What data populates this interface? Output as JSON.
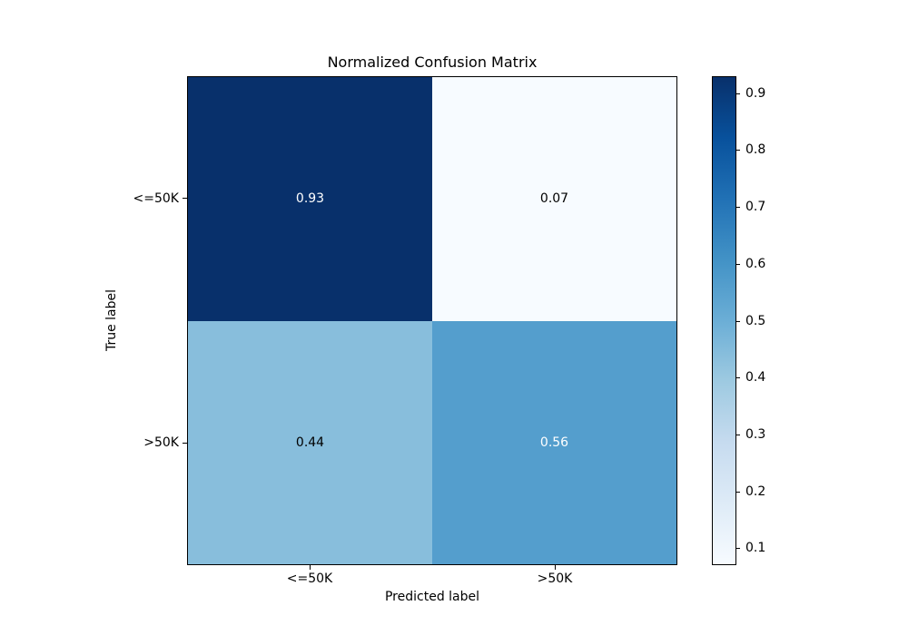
{
  "chart_data": {
    "type": "heatmap",
    "title": "Normalized Confusion Matrix",
    "xlabel": "Predicted label",
    "ylabel": "True label",
    "classes": [
      "<=50K",
      ">50K"
    ],
    "matrix": [
      [
        0.93,
        0.07
      ],
      [
        0.44,
        0.56
      ]
    ],
    "cell_labels": [
      [
        "0.93",
        "0.07"
      ],
      [
        "0.44",
        "0.56"
      ]
    ],
    "cell_colors": [
      [
        "#08306b",
        "#f7fbff"
      ],
      [
        "#88bedc",
        "#549ecd"
      ]
    ],
    "cell_text_colors": [
      [
        "#ffffff",
        "#000000"
      ],
      [
        "#000000",
        "#ffffff"
      ]
    ],
    "grid": false,
    "colorbar": {
      "position": "right",
      "vmin": 0.07,
      "vmax": 0.93,
      "tick_labels": [
        "0.1",
        "0.2",
        "0.3",
        "0.4",
        "0.5",
        "0.6",
        "0.7",
        "0.8",
        "0.9"
      ],
      "colormap_name": "Blues",
      "colormap_stops": [
        "#f7fbff",
        "#deebf7",
        "#c6dbef",
        "#9ecae1",
        "#6baed6",
        "#4292c6",
        "#2171b5",
        "#08519c",
        "#08306b"
      ]
    }
  }
}
